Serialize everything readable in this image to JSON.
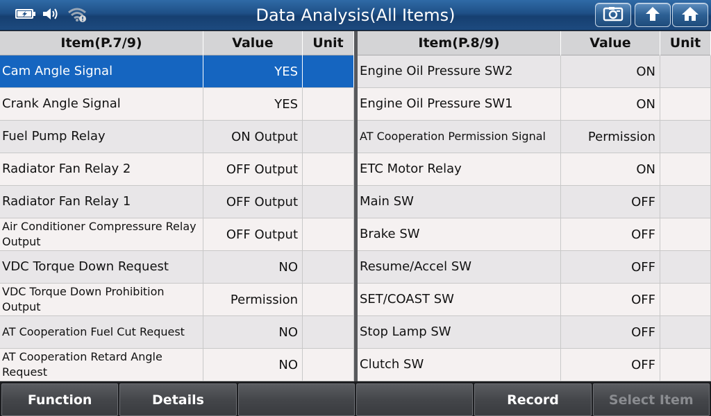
{
  "title": "Data Analysis(All Items)",
  "left_table": {
    "headers": {
      "item": "Item(P.7/9)",
      "value": "Value",
      "unit": "Unit"
    },
    "rows": [
      {
        "item": "Cam Angle Signal",
        "value": "YES",
        "unit": "",
        "selected": true
      },
      {
        "item": "Crank Angle Signal",
        "value": "YES",
        "unit": ""
      },
      {
        "item": "Fuel Pump Relay",
        "value": "ON Output",
        "unit": ""
      },
      {
        "item": "Radiator Fan Relay 2",
        "value": "OFF Output",
        "unit": ""
      },
      {
        "item": "Radiator Fan Relay 1",
        "value": "OFF Output",
        "unit": ""
      },
      {
        "item": "Air Conditioner Compressure Relay Output",
        "value": "OFF Output",
        "unit": ""
      },
      {
        "item": "VDC Torque Down Request",
        "value": "NO",
        "unit": ""
      },
      {
        "item": "VDC Torque Down Prohibition Output",
        "value": "Permission",
        "unit": ""
      },
      {
        "item": "AT Cooperation Fuel Cut Request",
        "value": "NO",
        "unit": ""
      },
      {
        "item": "AT Cooperation Retard Angle Request",
        "value": "NO",
        "unit": ""
      }
    ]
  },
  "right_table": {
    "headers": {
      "item": "Item(P.8/9)",
      "value": "Value",
      "unit": "Unit"
    },
    "rows": [
      {
        "item": "Engine Oil Pressure SW2",
        "value": "ON",
        "unit": ""
      },
      {
        "item": "Engine Oil Pressure SW1",
        "value": "ON",
        "unit": ""
      },
      {
        "item": "AT Cooperation Permission Signal",
        "value": "Permission",
        "unit": ""
      },
      {
        "item": "ETC Motor Relay",
        "value": "ON",
        "unit": ""
      },
      {
        "item": "Main SW",
        "value": "OFF",
        "unit": ""
      },
      {
        "item": "Brake SW",
        "value": "OFF",
        "unit": ""
      },
      {
        "item": "Resume/Accel SW",
        "value": "OFF",
        "unit": ""
      },
      {
        "item": "SET/COAST SW",
        "value": "OFF",
        "unit": ""
      },
      {
        "item": "Stop Lamp SW",
        "value": "OFF",
        "unit": ""
      },
      {
        "item": "Clutch SW",
        "value": "OFF",
        "unit": ""
      }
    ]
  },
  "toolbar": {
    "buttons": [
      {
        "label": "Function",
        "enabled": true
      },
      {
        "label": "Details",
        "enabled": true
      },
      {
        "label": "",
        "enabled": true
      },
      {
        "label": "",
        "enabled": true
      },
      {
        "label": "Record",
        "enabled": true
      },
      {
        "label": "Select Item",
        "enabled": false
      }
    ]
  },
  "icons": {
    "status": [
      "battery-charging-icon",
      "volume-icon",
      "wifi-icon"
    ],
    "title_buttons": [
      "screenshot-icon",
      "back-icon",
      "home-icon"
    ]
  },
  "colors": {
    "title_bar": "#1e4f86",
    "selected_row": "#1565c0",
    "header_bg": "#d4d4d6",
    "row_odd": "#e8e6e8",
    "row_even": "#f5f1f1",
    "bottom_button": "#44464a"
  }
}
